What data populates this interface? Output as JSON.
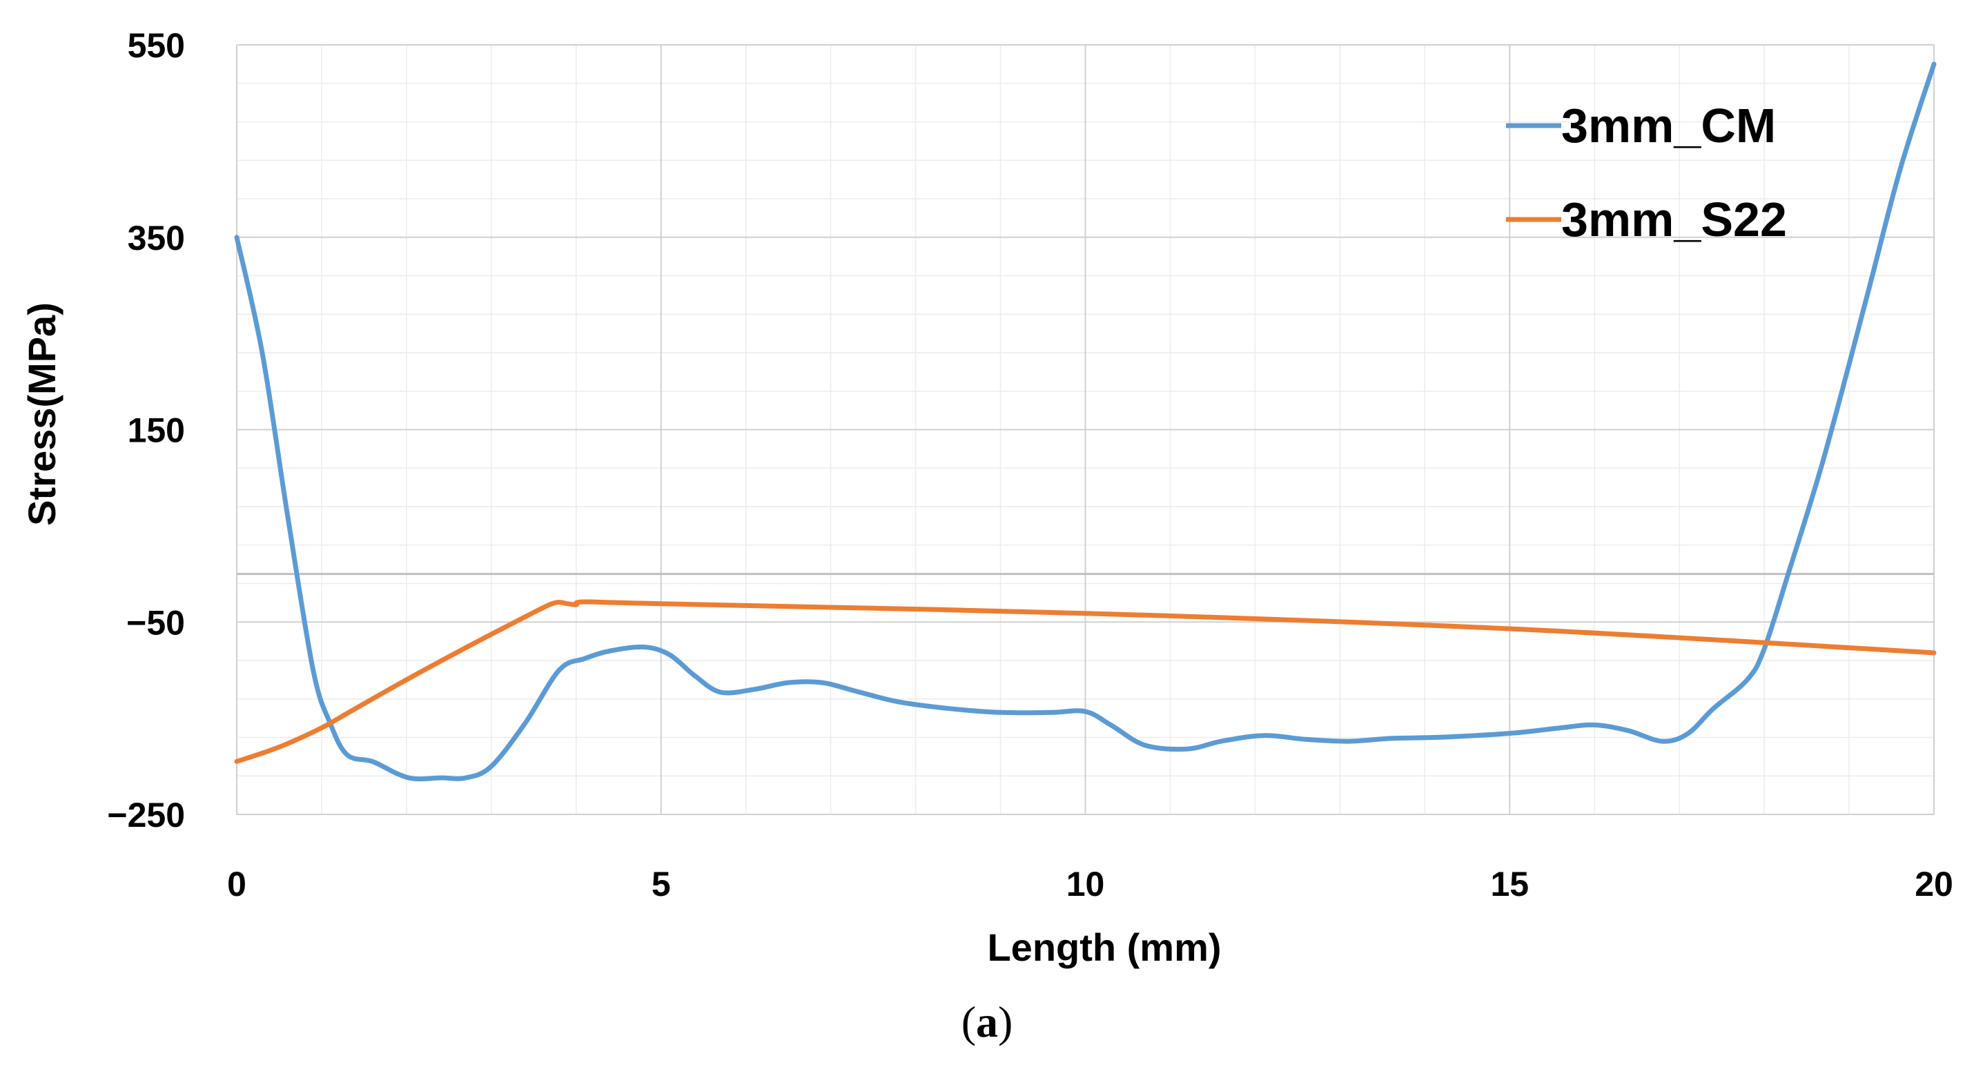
{
  "chart_data": {
    "type": "line",
    "xlabel": "Length (mm)",
    "ylabel": "Stress(MPa)",
    "xlim": [
      0,
      20
    ],
    "ylim": [
      -250,
      550
    ],
    "x_ticks": [
      "0",
      "5",
      "10",
      "15",
      "20"
    ],
    "y_ticks": [
      "550",
      "350",
      "150",
      "−50",
      "−250"
    ],
    "grid": "major and minor",
    "legend_position": "top-right",
    "series": [
      {
        "name": "3mm_CM",
        "color": "#5B9BD5",
        "x": [
          0,
          0.3,
          0.6,
          0.9,
          1.1,
          1.3,
          1.6,
          1.9,
          2.1,
          2.4,
          2.7,
          3.0,
          3.4,
          3.8,
          4.1,
          4.4,
          4.8,
          5.1,
          5.4,
          5.7,
          6.1,
          6.5,
          6.9,
          7.3,
          7.8,
          8.4,
          9.0,
          9.6,
          10.0,
          10.3,
          10.7,
          11.2,
          11.6,
          12.1,
          12.6,
          13.1,
          13.6,
          14.1,
          14.6,
          15.1,
          15.6,
          16.0,
          16.4,
          16.8,
          17.1,
          17.4,
          17.8,
          18.0,
          18.3,
          18.7,
          19.2,
          19.6,
          20.0
        ],
        "y": [
          350,
          230,
          60,
          -100,
          -155,
          -188,
          -195,
          -208,
          -213,
          -212,
          -212,
          -200,
          -155,
          -100,
          -88,
          -80,
          -76,
          -84,
          -106,
          -123,
          -120,
          -113,
          -113,
          -122,
          -133,
          -140,
          -144,
          -144,
          -143,
          -157,
          -178,
          -182,
          -174,
          -168,
          -172,
          -174,
          -171,
          -170,
          -168,
          -165,
          -160,
          -157,
          -163,
          -174,
          -166,
          -140,
          -110,
          -78,
          5,
          120,
          285,
          420,
          530
        ]
      },
      {
        "name": "3mm_S22",
        "color": "#ED7D31",
        "x": [
          0,
          0.5,
          1.0,
          1.3,
          2.0,
          2.8,
          3.5,
          3.75,
          3.9,
          4.0,
          4.1,
          5.0,
          10.0,
          15.0,
          20.0
        ],
        "y": [
          -195,
          -180,
          -160,
          -145,
          -110,
          -72,
          -40,
          -30,
          -31,
          -32,
          -29,
          -31,
          -41,
          -57,
          -82
        ]
      }
    ]
  },
  "caption": {
    "open": "(",
    "letter": "a",
    "close": ")"
  }
}
